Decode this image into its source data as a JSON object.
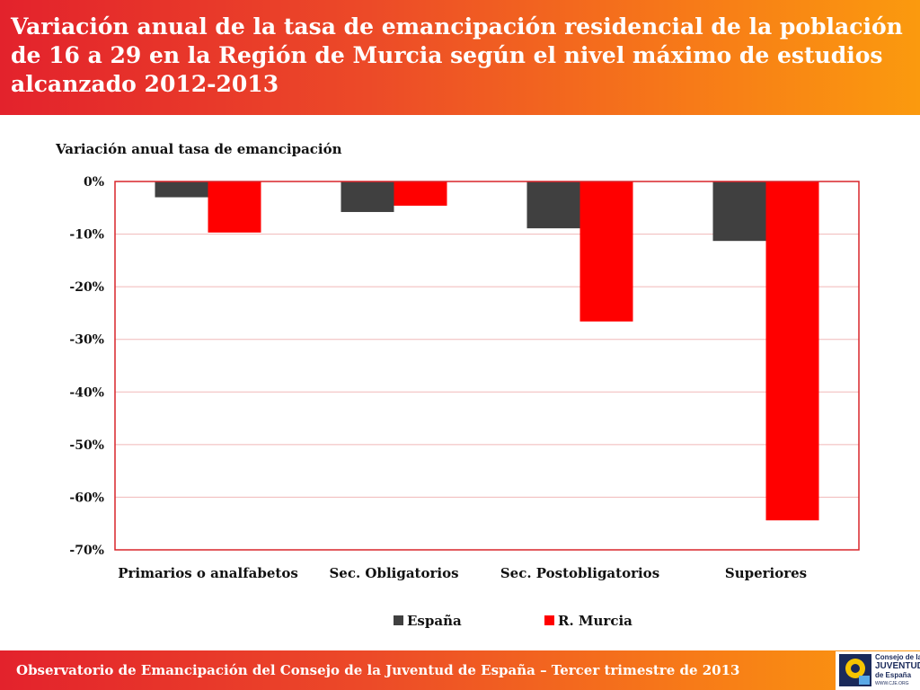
{
  "header": {
    "title": "Variación anual de la tasa de emancipación residencial de la población de 16 a 29 en la Región de Murcia según el nivel máximo de estudios alcanzado 2012-2013"
  },
  "footer": {
    "text": "Observatorio de Emancipación del Consejo de la Juventud de España – Tercer trimestre de 2013"
  },
  "logo": {
    "name_lines": [
      "Consejo de la",
      "JUVENTUD",
      "de España"
    ],
    "url": "WWW.CJE.ORG"
  },
  "colors": {
    "espana": "#404040",
    "murcia": "#ff0000",
    "frame": "#d9252a",
    "grid": "#f0b8b8"
  },
  "chart_data": {
    "type": "bar",
    "ylabel": "Variación anual tasa de emancipación",
    "categories": [
      "Primarios o analfabetos",
      "Sec. Obligatorios",
      "Sec. Postobligatorios",
      "Superiores"
    ],
    "series": [
      {
        "name": "España",
        "values": [
          -3.0,
          -5.8,
          -8.9,
          -11.3
        ]
      },
      {
        "name": "R. Murcia",
        "values": [
          -9.7,
          -4.6,
          -26.6,
          -64.4
        ]
      }
    ],
    "ylim": [
      -70,
      0
    ],
    "yticks": [
      0,
      -10,
      -20,
      -30,
      -40,
      -50,
      -60,
      -70
    ],
    "ytick_labels": [
      "0%",
      "-10%",
      "-20%",
      "-30%",
      "-40%",
      "-50%",
      "-60%",
      "-70%"
    ],
    "legend_position": "bottom",
    "grid": true
  }
}
